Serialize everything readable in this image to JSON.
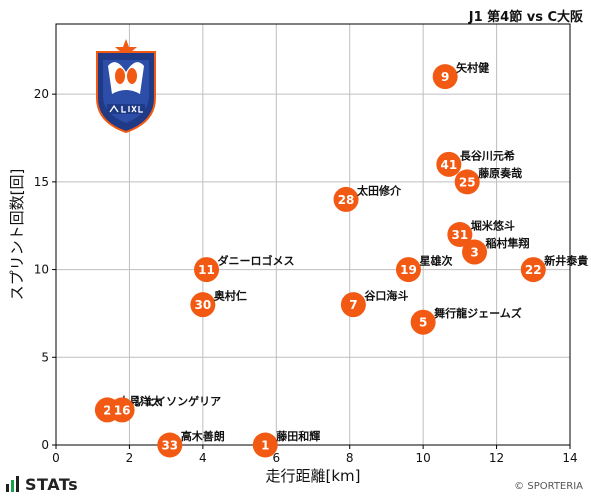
{
  "header": {
    "title": "J1 第4節 vs C大阪"
  },
  "footer": {
    "brand": "STATs",
    "credit": "© SPORTERIA"
  },
  "colors": {
    "marker": "#f25a14",
    "grid": "#bfbfbf",
    "text": "#111111"
  },
  "chart_data": {
    "type": "scatter",
    "xlabel": "走行距離[km]",
    "ylabel": "スプリント回数[回]",
    "xlim": [
      0,
      14
    ],
    "ylim": [
      0,
      24
    ],
    "xticks": [
      0,
      2,
      4,
      6,
      8,
      10,
      12,
      14
    ],
    "yticks": [
      0,
      5,
      10,
      15,
      20
    ],
    "grid": true,
    "points": [
      {
        "number": "9",
        "name": "矢村健",
        "x": 10.6,
        "y": 21
      },
      {
        "number": "41",
        "name": "長谷川元希",
        "x": 10.7,
        "y": 16
      },
      {
        "number": "25",
        "name": "藤原奏哉",
        "x": 11.2,
        "y": 15
      },
      {
        "number": "28",
        "name": "太田修介",
        "x": 7.9,
        "y": 14
      },
      {
        "number": "31",
        "name": "堀米悠斗",
        "x": 11.0,
        "y": 12
      },
      {
        "number": "3",
        "name": "稲村隼翔",
        "x": 11.4,
        "y": 11
      },
      {
        "number": "19",
        "name": "星雄次",
        "x": 9.6,
        "y": 10
      },
      {
        "number": "22",
        "name": "新井泰貴",
        "x": 13.0,
        "y": 10
      },
      {
        "number": "11",
        "name": "ダニーロゴメス",
        "x": 4.1,
        "y": 10
      },
      {
        "number": "30",
        "name": "奥村仁",
        "x": 4.0,
        "y": 8
      },
      {
        "number": "7",
        "name": "谷口海斗",
        "x": 8.1,
        "y": 8
      },
      {
        "number": "5",
        "name": "舞行龍ジェームズ",
        "x": 10.0,
        "y": 7
      },
      {
        "number": "2",
        "name": "小見洋太",
        "x": 1.4,
        "y": 2
      },
      {
        "number": "16",
        "name": "ジェイソンゲリア",
        "x": 1.8,
        "y": 2
      },
      {
        "number": "33",
        "name": "高木善朗",
        "x": 3.1,
        "y": 0
      },
      {
        "number": "1",
        "name": "藤田和輝",
        "x": 5.7,
        "y": 0
      }
    ]
  }
}
